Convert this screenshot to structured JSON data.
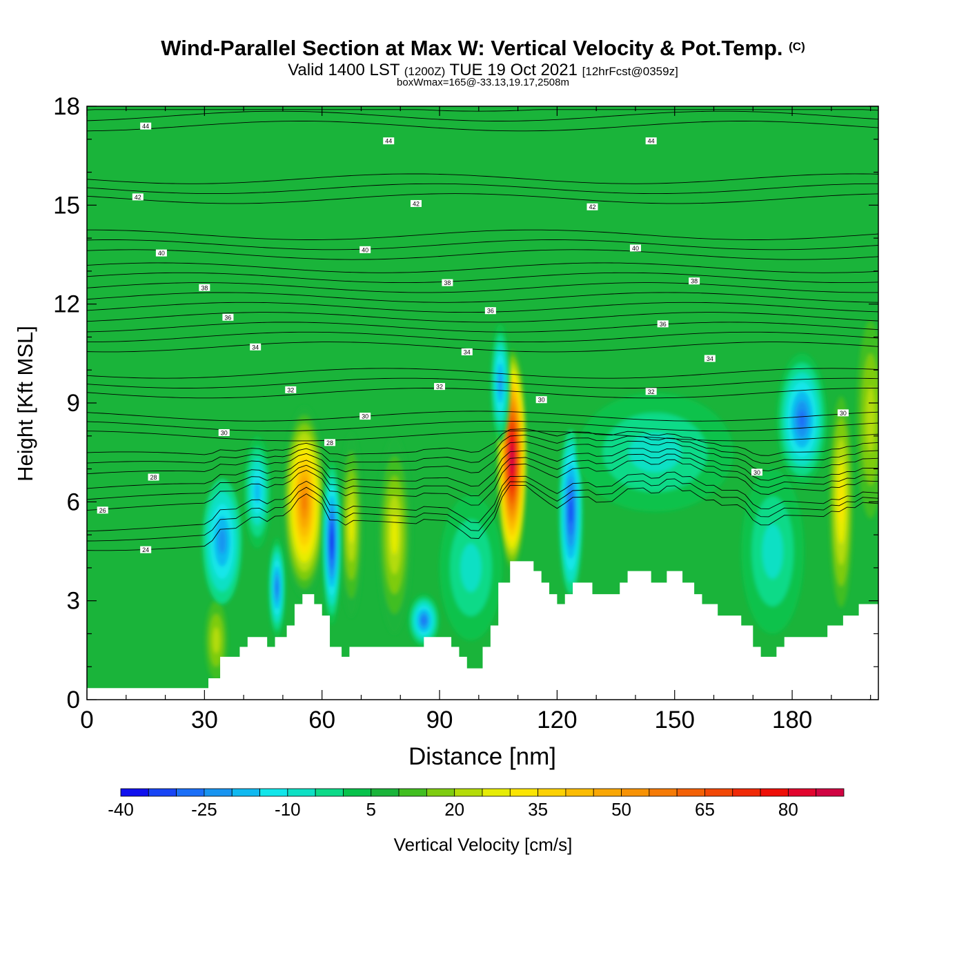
{
  "header": {
    "title": "Wind-Parallel Section at Max W: Vertical Velocity & Pot.Temp.",
    "copyright": "(C)",
    "valid_prefix": "Valid 1400 LST",
    "valid_zulu": "(1200Z)",
    "valid_date": "TUE 19 Oct 2021",
    "forecast": "[12hrFcst@0359z]",
    "box_info": "boxWmax=165@-33.13,19.17,2508m"
  },
  "chart_data": {
    "type": "heatmap",
    "xlabel": "Distance [nm]",
    "ylabel": "Height [Kft MSL]",
    "xlim": [
      0,
      202
    ],
    "ylim": [
      0,
      18
    ],
    "x_ticks": [
      "0",
      "30",
      "60",
      "90",
      "120",
      "150",
      "180"
    ],
    "y_ticks": [
      "0",
      "3",
      "6",
      "9",
      "12",
      "15",
      "18"
    ],
    "colorbar": {
      "label": "Vertical Velocity [cm/s]",
      "levels": [
        -40,
        -35,
        -30,
        -25,
        -20,
        -15,
        -10,
        -5,
        0,
        5,
        10,
        15,
        20,
        25,
        30,
        35,
        40,
        45,
        50,
        55,
        60,
        65,
        70,
        75,
        80,
        85,
        90
      ],
      "tick_labels": [
        "-40",
        "-25",
        "-10",
        "5",
        "20",
        "35",
        "50",
        "65",
        "80"
      ],
      "colors": [
        "#1010ee",
        "#1845f5",
        "#1b6ff7",
        "#1894f0",
        "#10b9f0",
        "#12e6ea",
        "#0ee0c4",
        "#0dda88",
        "#07c24b",
        "#1ab43a",
        "#41be20",
        "#7ecc10",
        "#b4dc08",
        "#e6ec05",
        "#fbe502",
        "#fcd103",
        "#fbbc03",
        "#f9a704",
        "#f79204",
        "#f57b06",
        "#f36106",
        "#f24806",
        "#f02a07",
        "#ee0f08",
        "#e2042e",
        "#d00342"
      ]
    },
    "background_w": 5,
    "terrain_kft": [
      [
        0,
        0.35
      ],
      [
        31,
        0.35
      ],
      [
        31,
        0.65
      ],
      [
        34,
        0.65
      ],
      [
        34,
        1.3
      ],
      [
        39,
        1.3
      ],
      [
        39,
        1.6
      ],
      [
        41,
        1.6
      ],
      [
        41,
        1.9
      ],
      [
        46,
        1.9
      ],
      [
        46,
        1.6
      ],
      [
        48,
        1.6
      ],
      [
        48,
        1.9
      ],
      [
        51,
        1.9
      ],
      [
        51,
        2.25
      ],
      [
        53,
        2.25
      ],
      [
        53,
        2.9
      ],
      [
        55,
        2.9
      ],
      [
        55,
        3.2
      ],
      [
        58,
        3.2
      ],
      [
        58,
        2.9
      ],
      [
        60,
        2.9
      ],
      [
        60,
        2.55
      ],
      [
        62,
        2.55
      ],
      [
        62,
        1.6
      ],
      [
        65,
        1.6
      ],
      [
        65,
        1.3
      ],
      [
        67,
        1.3
      ],
      [
        67,
        1.6
      ],
      [
        86,
        1.6
      ],
      [
        86,
        1.9
      ],
      [
        93,
        1.9
      ],
      [
        93,
        1.6
      ],
      [
        95,
        1.6
      ],
      [
        95,
        1.3
      ],
      [
        97,
        1.3
      ],
      [
        97,
        0.95
      ],
      [
        101,
        0.95
      ],
      [
        101,
        1.6
      ],
      [
        103,
        1.6
      ],
      [
        103,
        2.25
      ],
      [
        105,
        2.25
      ],
      [
        105,
        3.55
      ],
      [
        108,
        3.55
      ],
      [
        108,
        4.2
      ],
      [
        114,
        4.2
      ],
      [
        114,
        3.9
      ],
      [
        116,
        3.9
      ],
      [
        116,
        3.55
      ],
      [
        118,
        3.55
      ],
      [
        118,
        3.2
      ],
      [
        120,
        3.2
      ],
      [
        120,
        2.9
      ],
      [
        122,
        2.9
      ],
      [
        122,
        3.2
      ],
      [
        124,
        3.2
      ],
      [
        124,
        3.55
      ],
      [
        129,
        3.55
      ],
      [
        129,
        3.2
      ],
      [
        136,
        3.2
      ],
      [
        136,
        3.55
      ],
      [
        138,
        3.55
      ],
      [
        138,
        3.9
      ],
      [
        144,
        3.9
      ],
      [
        144,
        3.55
      ],
      [
        148,
        3.55
      ],
      [
        148,
        3.9
      ],
      [
        152,
        3.9
      ],
      [
        152,
        3.55
      ],
      [
        155,
        3.55
      ],
      [
        155,
        3.2
      ],
      [
        157,
        3.2
      ],
      [
        157,
        2.9
      ],
      [
        161,
        2.9
      ],
      [
        161,
        2.55
      ],
      [
        167,
        2.55
      ],
      [
        167,
        2.25
      ],
      [
        170,
        2.25
      ],
      [
        170,
        1.6
      ],
      [
        172,
        1.6
      ],
      [
        172,
        1.3
      ],
      [
        176,
        1.3
      ],
      [
        176,
        1.6
      ],
      [
        178,
        1.6
      ],
      [
        178,
        1.9
      ],
      [
        189,
        1.9
      ],
      [
        189,
        2.25
      ],
      [
        193,
        2.25
      ],
      [
        193,
        2.55
      ],
      [
        197,
        2.55
      ],
      [
        197,
        2.9
      ],
      [
        202,
        2.9
      ]
    ],
    "w_cells": [
      {
        "x": 55.5,
        "y": 6.0,
        "rx": 5.5,
        "ry": 2.9,
        "w": 58
      },
      {
        "x": 67.5,
        "y": 5.3,
        "rx": 3.0,
        "ry": 2.8,
        "w": 28
      },
      {
        "x": 78.5,
        "y": 5.0,
        "rx": 4.5,
        "ry": 3.0,
        "w": 28
      },
      {
        "x": 108.5,
        "y": 7.3,
        "rx": 3.8,
        "ry": 3.3,
        "w": 90
      },
      {
        "x": 192.5,
        "y": 6.0,
        "rx": 3.0,
        "ry": 3.2,
        "w": 32
      },
      {
        "x": 200,
        "y": 8.5,
        "rx": 3.5,
        "ry": 3.0,
        "w": 22
      },
      {
        "x": 33,
        "y": 1.8,
        "rx": 2.8,
        "ry": 1.2,
        "w": 22
      },
      {
        "x": 62.5,
        "y": 4.8,
        "rx": 2.5,
        "ry": 2.5,
        "w": -38
      },
      {
        "x": 48.5,
        "y": 3.4,
        "rx": 2.2,
        "ry": 1.5,
        "w": -28
      },
      {
        "x": 34.5,
        "y": 4.8,
        "rx": 5.0,
        "ry": 1.9,
        "w": -22
      },
      {
        "x": 43.5,
        "y": 6.3,
        "rx": 3.5,
        "ry": 1.7,
        "w": -18
      },
      {
        "x": 86,
        "y": 2.4,
        "rx": 4.0,
        "ry": 0.8,
        "w": -30
      },
      {
        "x": 123.5,
        "y": 5.7,
        "rx": 3.0,
        "ry": 2.5,
        "w": -32
      },
      {
        "x": 105.5,
        "y": 9.6,
        "rx": 2.5,
        "ry": 1.8,
        "w": -25
      },
      {
        "x": 182.5,
        "y": 8.5,
        "rx": 6.5,
        "ry": 2.0,
        "w": -28
      },
      {
        "x": 98,
        "y": 4.0,
        "rx": 8.0,
        "ry": 2.2,
        "w": -10
      },
      {
        "x": 145,
        "y": 7.5,
        "rx": 20.0,
        "ry": 1.8,
        "w": -8
      },
      {
        "x": 175,
        "y": 4.5,
        "rx": 8.0,
        "ry": 2.5,
        "w": -10
      }
    ],
    "theta_contours": [
      {
        "value": 24,
        "level_left": 4.5
      },
      {
        "value": 26,
        "level_left": 5.7
      },
      {
        "value": 28,
        "level_left": 6.7
      },
      {
        "value": 30,
        "level_left": 8.0
      },
      {
        "value": 32,
        "level_left": 9.3
      },
      {
        "value": 34,
        "level_left": 10.7
      },
      {
        "value": 36,
        "level_left": 11.6
      },
      {
        "value": 38,
        "level_left": 12.5
      },
      {
        "value": 40,
        "level_left": 13.5
      },
      {
        "value": 42,
        "level_left": 15.2
      },
      {
        "value": 44,
        "level_left": 17.4
      }
    ],
    "contour_labels": [
      {
        "text": "44",
        "x": 15,
        "y": 17.4
      },
      {
        "text": "44",
        "x": 77,
        "y": 16.95
      },
      {
        "text": "44",
        "x": 144,
        "y": 16.95
      },
      {
        "text": "42",
        "x": 13,
        "y": 15.25
      },
      {
        "text": "42",
        "x": 84,
        "y": 15.05
      },
      {
        "text": "42",
        "x": 129,
        "y": 14.95
      },
      {
        "text": "40",
        "x": 19,
        "y": 13.55
      },
      {
        "text": "40",
        "x": 71,
        "y": 13.65
      },
      {
        "text": "40",
        "x": 140,
        "y": 13.7
      },
      {
        "text": "38",
        "x": 30,
        "y": 12.5
      },
      {
        "text": "38",
        "x": 92,
        "y": 12.65
      },
      {
        "text": "38",
        "x": 155,
        "y": 12.7
      },
      {
        "text": "36",
        "x": 36,
        "y": 11.6
      },
      {
        "text": "36",
        "x": 103,
        "y": 11.8
      },
      {
        "text": "36",
        "x": 147,
        "y": 11.4
      },
      {
        "text": "34",
        "x": 43,
        "y": 10.7
      },
      {
        "text": "34",
        "x": 97,
        "y": 10.55
      },
      {
        "text": "34",
        "x": 159,
        "y": 10.35
      },
      {
        "text": "32",
        "x": 52,
        "y": 9.4
      },
      {
        "text": "32",
        "x": 90,
        "y": 9.5
      },
      {
        "text": "32",
        "x": 144,
        "y": 9.35
      },
      {
        "text": "30",
        "x": 35,
        "y": 8.1
      },
      {
        "text": "30",
        "x": 71,
        "y": 8.6
      },
      {
        "text": "30",
        "x": 116,
        "y": 9.1
      },
      {
        "text": "30",
        "x": 171,
        "y": 6.9
      },
      {
        "text": "30",
        "x": 193,
        "y": 8.7
      },
      {
        "text": "28",
        "x": 17,
        "y": 6.75
      },
      {
        "text": "28",
        "x": 62,
        "y": 7.8
      },
      {
        "text": "26",
        "x": 4,
        "y": 5.75
      },
      {
        "text": "24",
        "x": 15,
        "y": 4.55
      }
    ]
  }
}
